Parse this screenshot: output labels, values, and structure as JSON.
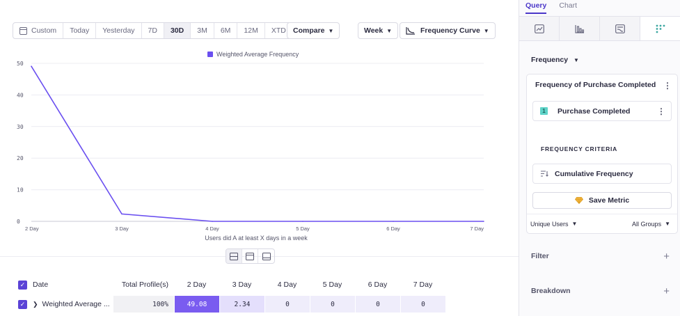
{
  "toolbar": {
    "date_items": [
      "Custom",
      "Today",
      "Yesterday",
      "7D",
      "30D",
      "3M",
      "6M",
      "12M",
      "XTD"
    ],
    "active_date": "30D",
    "compare_label": "Compare",
    "interval_label": "Week",
    "chart_type_label": "Frequency Curve"
  },
  "chart_data": {
    "type": "line",
    "categories": [
      "2 Day",
      "3 Day",
      "4 Day",
      "5 Day",
      "6 Day",
      "7 Day"
    ],
    "series": [
      {
        "name": "Weighted Average Frequency",
        "values": [
          49.08,
          2.34,
          0,
          0,
          0,
          0
        ]
      }
    ],
    "xlabel": "Users did A at least X days in a week",
    "ylabel": "",
    "yticks": [
      "0",
      "10",
      "20",
      "30",
      "40",
      "50"
    ],
    "ylim": [
      0,
      50
    ],
    "grid": true,
    "legend": "top-center",
    "color": "#6a4ff0"
  },
  "table": {
    "headers": {
      "date": "Date",
      "total": "Total Profile(s)",
      "days": [
        "2 Day",
        "3 Day",
        "4 Day",
        "5 Day",
        "6 Day",
        "7 Day"
      ]
    },
    "rows": [
      {
        "name": "Weighted Average ...",
        "total": "100%",
        "values": [
          "49.08",
          "2.34",
          "0",
          "0",
          "0",
          "0"
        ]
      }
    ],
    "cell_colors": [
      "#7a5cf0",
      "#e4dffc",
      "#efedfb",
      "#efedfb",
      "#efedfb",
      "#efedfb"
    ]
  },
  "panel": {
    "tabs": [
      "Query",
      "Chart"
    ],
    "active_tab": "Query",
    "chart_type_icons": [
      "line-chart-icon",
      "bar-chart-icon",
      "flows-icon",
      "frequency-icon"
    ],
    "metric_type": "Frequency",
    "card_title": "Frequency of Purchase Completed",
    "event_index": "1",
    "event_name": "Purchase Completed",
    "criteria_label": "FREQUENCY CRITERIA",
    "criteria_value": "Cumulative Frequency",
    "save_label": "Save Metric",
    "measure_label": "Unique Users",
    "group_label": "All Groups",
    "filter_label": "Filter",
    "breakdown_label": "Breakdown"
  }
}
